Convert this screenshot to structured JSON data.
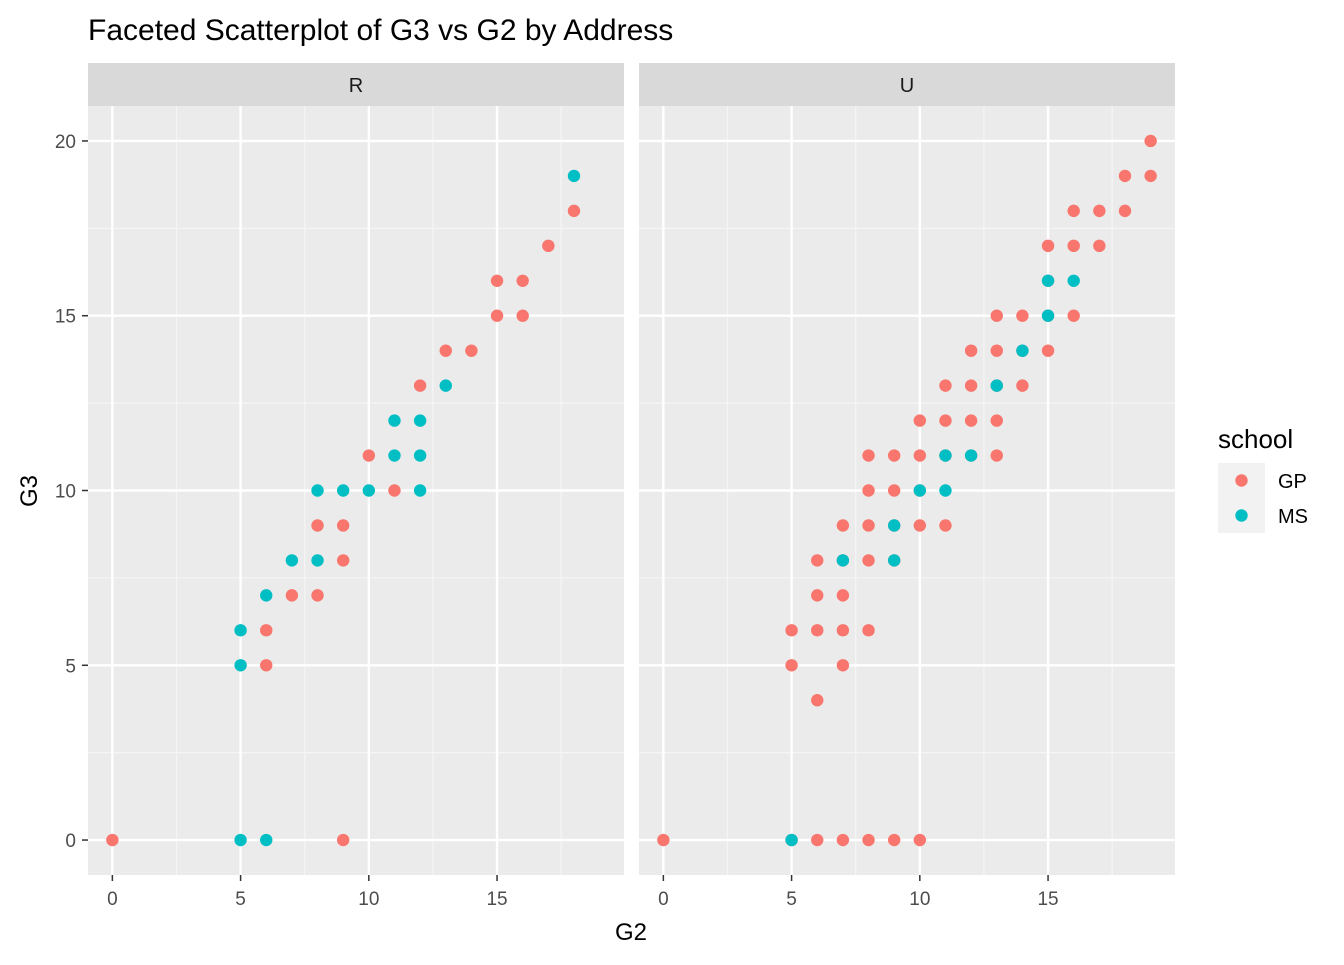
{
  "chart_data": {
    "type": "scatter",
    "title": "Faceted Scatterplot of G3 vs G2 by Address",
    "xlabel": "G2",
    "ylabel": "G3",
    "xlim": [
      -0.95,
      19.95
    ],
    "ylim": [
      -1,
      21
    ],
    "x_ticks": [
      0,
      5,
      10,
      15
    ],
    "x_tick_labels": [
      "0",
      "5",
      "10",
      "15"
    ],
    "y_ticks": [
      0,
      5,
      10,
      15,
      20
    ],
    "y_tick_labels": [
      "0",
      "5",
      "10",
      "15",
      "20"
    ],
    "grid": true,
    "legend": {
      "title": "school",
      "position": "right",
      "entries": [
        {
          "label": "GP",
          "color": "#F8766D"
        },
        {
          "label": "MS",
          "color": "#00BFC4"
        }
      ]
    },
    "facets": [
      {
        "label": "R",
        "series": [
          {
            "name": "GP",
            "color": "#F8766D",
            "points": [
              [
                0,
                0
              ],
              [
                6,
                5
              ],
              [
                6,
                6
              ],
              [
                7,
                7
              ],
              [
                8,
                7
              ],
              [
                8,
                9
              ],
              [
                9,
                8
              ],
              [
                9,
                9
              ],
              [
                9,
                0
              ],
              [
                10,
                11
              ],
              [
                11,
                10
              ],
              [
                12,
                13
              ],
              [
                13,
                14
              ],
              [
                14,
                14
              ],
              [
                15,
                15
              ],
              [
                15,
                16
              ],
              [
                16,
                15
              ],
              [
                16,
                16
              ],
              [
                17,
                17
              ],
              [
                18,
                18
              ]
            ]
          },
          {
            "name": "MS",
            "color": "#00BFC4",
            "points": [
              [
                5,
                5
              ],
              [
                5,
                6
              ],
              [
                5,
                0
              ],
              [
                6,
                7
              ],
              [
                6,
                0
              ],
              [
                7,
                8
              ],
              [
                8,
                8
              ],
              [
                8,
                10
              ],
              [
                9,
                10
              ],
              [
                10,
                10
              ],
              [
                11,
                11
              ],
              [
                11,
                12
              ],
              [
                12,
                10
              ],
              [
                12,
                11
              ],
              [
                12,
                12
              ],
              [
                13,
                13
              ],
              [
                18,
                19
              ]
            ]
          }
        ]
      },
      {
        "label": "U",
        "series": [
          {
            "name": "GP",
            "color": "#F8766D",
            "points": [
              [
                0,
                0
              ],
              [
                5,
                0
              ],
              [
                5,
                5
              ],
              [
                5,
                6
              ],
              [
                6,
                0
              ],
              [
                6,
                4
              ],
              [
                6,
                6
              ],
              [
                6,
                7
              ],
              [
                6,
                8
              ],
              [
                7,
                0
              ],
              [
                7,
                5
              ],
              [
                7,
                6
              ],
              [
                7,
                7
              ],
              [
                7,
                8
              ],
              [
                7,
                9
              ],
              [
                8,
                0
              ],
              [
                8,
                6
              ],
              [
                8,
                8
              ],
              [
                8,
                9
              ],
              [
                8,
                10
              ],
              [
                8,
                11
              ],
              [
                9,
                0
              ],
              [
                9,
                8
              ],
              [
                9,
                9
              ],
              [
                9,
                10
              ],
              [
                9,
                11
              ],
              [
                10,
                0
              ],
              [
                10,
                9
              ],
              [
                10,
                10
              ],
              [
                10,
                11
              ],
              [
                10,
                12
              ],
              [
                11,
                9
              ],
              [
                11,
                11
              ],
              [
                11,
                12
              ],
              [
                11,
                13
              ],
              [
                12,
                11
              ],
              [
                12,
                12
              ],
              [
                12,
                13
              ],
              [
                12,
                14
              ],
              [
                13,
                11
              ],
              [
                13,
                12
              ],
              [
                13,
                13
              ],
              [
                13,
                14
              ],
              [
                13,
                15
              ],
              [
                14,
                13
              ],
              [
                14,
                14
              ],
              [
                14,
                15
              ],
              [
                15,
                14
              ],
              [
                15,
                15
              ],
              [
                15,
                16
              ],
              [
                15,
                17
              ],
              [
                16,
                15
              ],
              [
                16,
                17
              ],
              [
                16,
                18
              ],
              [
                17,
                17
              ],
              [
                17,
                18
              ],
              [
                18,
                18
              ],
              [
                18,
                19
              ],
              [
                19,
                19
              ],
              [
                19,
                20
              ]
            ]
          },
          {
            "name": "MS",
            "color": "#00BFC4",
            "points": [
              [
                5,
                0
              ],
              [
                7,
                8
              ],
              [
                9,
                8
              ],
              [
                9,
                9
              ],
              [
                10,
                10
              ],
              [
                11,
                10
              ],
              [
                11,
                11
              ],
              [
                12,
                11
              ],
              [
                13,
                13
              ],
              [
                14,
                14
              ],
              [
                15,
                15
              ],
              [
                15,
                16
              ],
              [
                16,
                16
              ]
            ]
          }
        ]
      }
    ]
  }
}
